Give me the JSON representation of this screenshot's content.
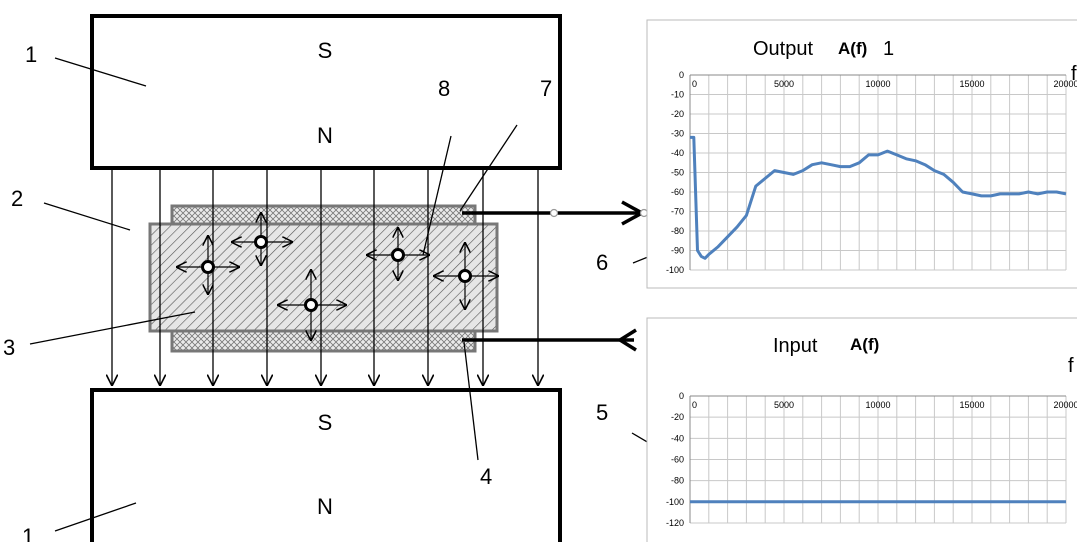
{
  "diagram": {
    "labels": {
      "magnet_top": "1",
      "gap": "2",
      "sample": "3",
      "electrode": "4",
      "input_chart": "5",
      "output_chart": "6",
      "output_lead": "7",
      "particle": "8",
      "magnet_bottom": "1"
    },
    "magnet_top": {
      "pole_upper": "S",
      "pole_lower": "N"
    },
    "magnet_bottom": {
      "pole_upper": "S",
      "pole_lower": "N"
    }
  },
  "chart_data": [
    {
      "type": "line",
      "title": "Output",
      "title_func": "A(f)",
      "title_suffix": "1",
      "xlabel": "f",
      "x_ticks": [
        "5000",
        "10000",
        "15000",
        "20000"
      ],
      "y_ticks": [
        "0",
        "-10",
        "-20",
        "-30",
        "-40",
        "-50",
        "-60",
        "-70",
        "-80",
        "-90",
        "-100"
      ],
      "xlim": [
        0,
        20000
      ],
      "ylim": [
        -100,
        0
      ],
      "grid": true,
      "color": "#4f81bd",
      "x": [
        0,
        200,
        400,
        600,
        800,
        1000,
        1500,
        2000,
        2500,
        3000,
        3500,
        4000,
        4500,
        5000,
        5500,
        6000,
        6500,
        7000,
        7500,
        8000,
        8500,
        9000,
        9500,
        10000,
        10500,
        11000,
        11500,
        12000,
        12500,
        13000,
        13500,
        14000,
        14500,
        15000,
        15500,
        16000,
        16500,
        17000,
        17500,
        18000,
        18500,
        19000,
        19500,
        20000
      ],
      "y": [
        -32,
        -32,
        -90,
        -93,
        -94,
        -92,
        -88,
        -83,
        -78,
        -72,
        -57,
        -53,
        -49,
        -50,
        -51,
        -49,
        -46,
        -45,
        -46,
        -47,
        -47,
        -45,
        -41,
        -41,
        -39,
        -41,
        -43,
        -44,
        -46,
        -49,
        -51,
        -55,
        -60,
        -61,
        -62,
        -62,
        -61,
        -61,
        -61,
        -60,
        -61,
        -60,
        -60,
        -61
      ]
    },
    {
      "type": "line",
      "title": "Input",
      "title_func": "A(f)",
      "xlabel": "f",
      "x_ticks": [
        "5000",
        "10000",
        "15000",
        "20000"
      ],
      "y_ticks": [
        "0",
        "-20",
        "-40",
        "-60",
        "-80",
        "-100",
        "-120"
      ],
      "xlim": [
        0,
        20000
      ],
      "ylim": [
        -120,
        0
      ],
      "grid": true,
      "color": "#4f81bd",
      "x": [
        0,
        20000
      ],
      "y": [
        -100,
        -100
      ]
    }
  ]
}
